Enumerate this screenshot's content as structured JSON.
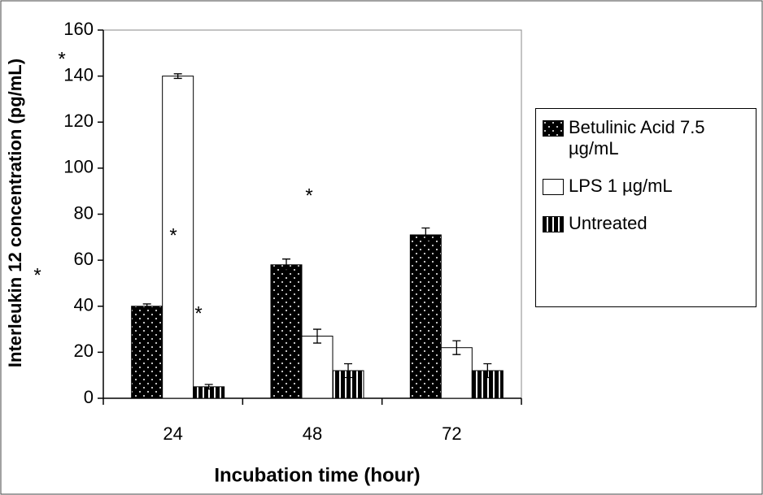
{
  "chart_data": {
    "type": "bar",
    "categories": [
      "24",
      "48",
      "72"
    ],
    "series": [
      {
        "name": "Betulinic Acid 7.5 µg/mL",
        "color": "#000000",
        "pattern": "dots",
        "values": [
          40,
          58,
          71
        ],
        "errors": [
          1,
          2.5,
          3
        ]
      },
      {
        "name": "LPS 1 µg/mL",
        "color": "#ffffff",
        "pattern": "none",
        "values": [
          140,
          27,
          22
        ],
        "errors": [
          1,
          3,
          3
        ]
      },
      {
        "name": "Untreated",
        "color": "#000000",
        "pattern": "stripes",
        "values": [
          5,
          12,
          12
        ],
        "errors": [
          1,
          3,
          3
        ]
      }
    ],
    "ylim": [
      0,
      160
    ],
    "yticks": [
      0,
      20,
      40,
      60,
      80,
      100,
      120,
      140,
      160
    ],
    "y_label": "Interleukin 12 concentration (pg/mL)",
    "x_label": "Incubation time (hour)",
    "annotations": [
      "*",
      "*",
      "*",
      "*",
      "*",
      "*"
    ]
  }
}
